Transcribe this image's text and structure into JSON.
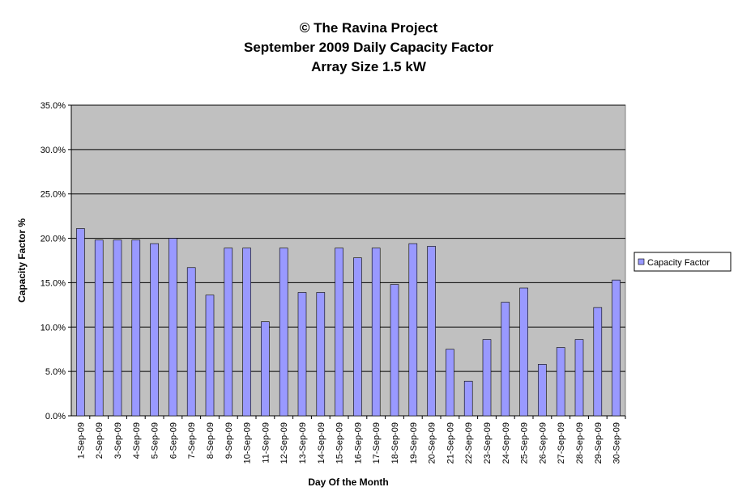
{
  "chart_data": {
    "type": "bar",
    "title": "© The Ravina Project",
    "subtitle": [
      "September 2009 Daily Capacity Factor",
      "Array Size 1.5 kW"
    ],
    "x_label": "Day Of the Month",
    "y_label": "Capacity Factor %",
    "categories": [
      "1-Sep-09",
      "2-Sep-09",
      "3-Sep-09",
      "4-Sep-09",
      "5-Sep-09",
      "6-Sep-09",
      "7-Sep-09",
      "8-Sep-09",
      "9-Sep-09",
      "10-Sep-09",
      "11-Sep-09",
      "12-Sep-09",
      "13-Sep-09",
      "14-Sep-09",
      "15-Sep-09",
      "16-Sep-09",
      "17-Sep-09",
      "18-Sep-09",
      "19-Sep-09",
      "20-Sep-09",
      "21-Sep-09",
      "22-Sep-09",
      "23-Sep-09",
      "24-Sep-09",
      "25-Sep-09",
      "26-Sep-09",
      "27-Sep-09",
      "28-Sep-09",
      "29-Sep-09",
      "30-Sep-09"
    ],
    "series": [
      {
        "name": "Capacity Factor",
        "color": "#9999ff",
        "values": [
          21.1,
          19.8,
          19.8,
          19.8,
          19.4,
          20.0,
          16.7,
          13.6,
          18.9,
          18.9,
          10.6,
          18.9,
          13.9,
          13.9,
          18.9,
          17.8,
          18.9,
          14.8,
          19.4,
          19.1,
          7.5,
          3.9,
          8.6,
          12.8,
          14.4,
          5.8,
          7.7,
          8.6,
          12.2,
          15.3
        ]
      }
    ],
    "ylim": [
      0,
      35
    ],
    "yticks": [
      {
        "value": 0,
        "label": "0.0%"
      },
      {
        "value": 5,
        "label": "5.0%"
      },
      {
        "value": 10,
        "label": "10.0%"
      },
      {
        "value": 15,
        "label": "15.0%"
      },
      {
        "value": 20,
        "label": "20.0%"
      },
      {
        "value": 25,
        "label": "25.0%"
      },
      {
        "value": 30,
        "label": "30.0%"
      },
      {
        "value": 35,
        "label": "35.0%"
      }
    ],
    "grid": true,
    "legend": "right"
  }
}
